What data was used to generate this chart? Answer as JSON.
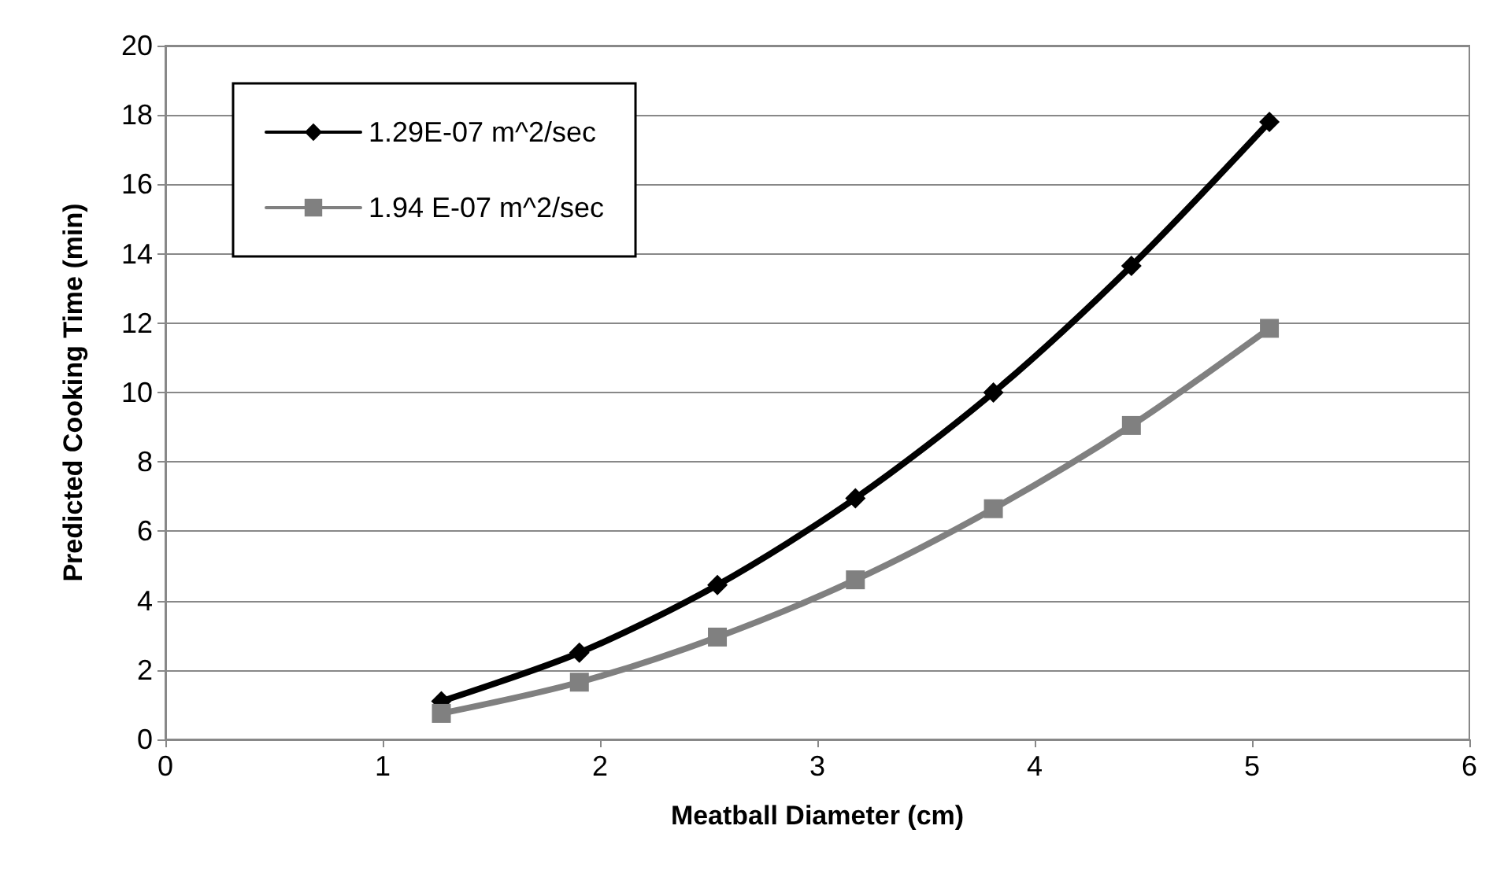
{
  "chart_data": {
    "type": "line",
    "xlabel": "Meatball Diameter (cm)",
    "ylabel": "Predicted Cooking Time (min)",
    "xlim": [
      0,
      6
    ],
    "xticks": [
      0,
      1,
      2,
      3,
      4,
      5,
      6
    ],
    "ylim": [
      0,
      20
    ],
    "yticks": [
      0,
      2,
      4,
      6,
      8,
      10,
      12,
      14,
      16,
      18,
      20
    ],
    "grid": "y",
    "legend": "top left",
    "x": [
      1.27,
      1.905,
      2.54,
      3.175,
      3.81,
      4.445,
      5.08
    ],
    "series": [
      {
        "name": "1.29E-07 m^2/sec",
        "color": "#000000",
        "marker": "diamond",
        "values": [
          1.1,
          2.5,
          4.45,
          6.95,
          10.0,
          13.65,
          17.8
        ]
      },
      {
        "name": "1.94 E-07 m^2/sec",
        "color": "#808080",
        "marker": "square",
        "values": [
          0.75,
          1.65,
          2.95,
          4.6,
          6.65,
          9.05,
          11.85
        ]
      }
    ]
  }
}
